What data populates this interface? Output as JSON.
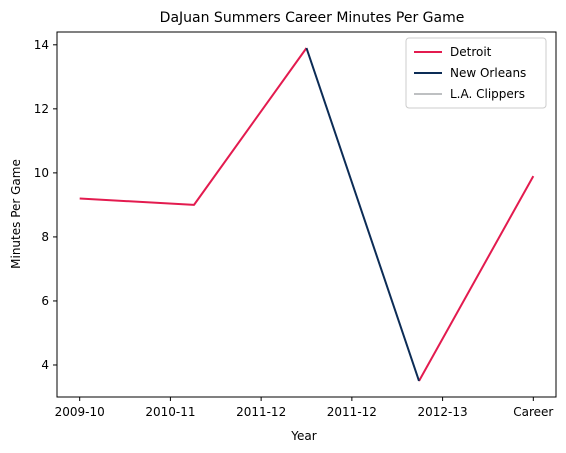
{
  "chart_data": {
    "type": "line",
    "title": "DaJuan Summers Career Minutes Per Game",
    "xlabel": "Year",
    "ylabel": "Minutes Per Game",
    "categories": [
      "2009-10",
      "2010-11",
      "2011-12",
      "2011-12",
      "2012-13",
      "Career"
    ],
    "ylim": [
      3.0,
      14.4
    ],
    "yticks": [
      4,
      6,
      8,
      10,
      12,
      14
    ],
    "grid": false,
    "legend_position": "top-right",
    "series": [
      {
        "name": "Detroit",
        "color": "#E31B4F",
        "points": [
          {
            "x": 0,
            "y": 9.2
          },
          {
            "x": 1.26,
            "y": 9.0
          },
          {
            "x": 2.5,
            "y": 13.9
          },
          {
            "x": null,
            "y": null
          },
          {
            "x": 3.74,
            "y": 3.5
          },
          {
            "x": 5,
            "y": 9.9
          }
        ]
      },
      {
        "name": "New Orleans",
        "color": "#0C2C56",
        "points": [
          {
            "x": 2.5,
            "y": 13.9
          },
          {
            "x": 3.74,
            "y": 3.5
          }
        ]
      },
      {
        "name": "L.A. Clippers",
        "color": "#BEC0C2",
        "points": []
      }
    ]
  }
}
